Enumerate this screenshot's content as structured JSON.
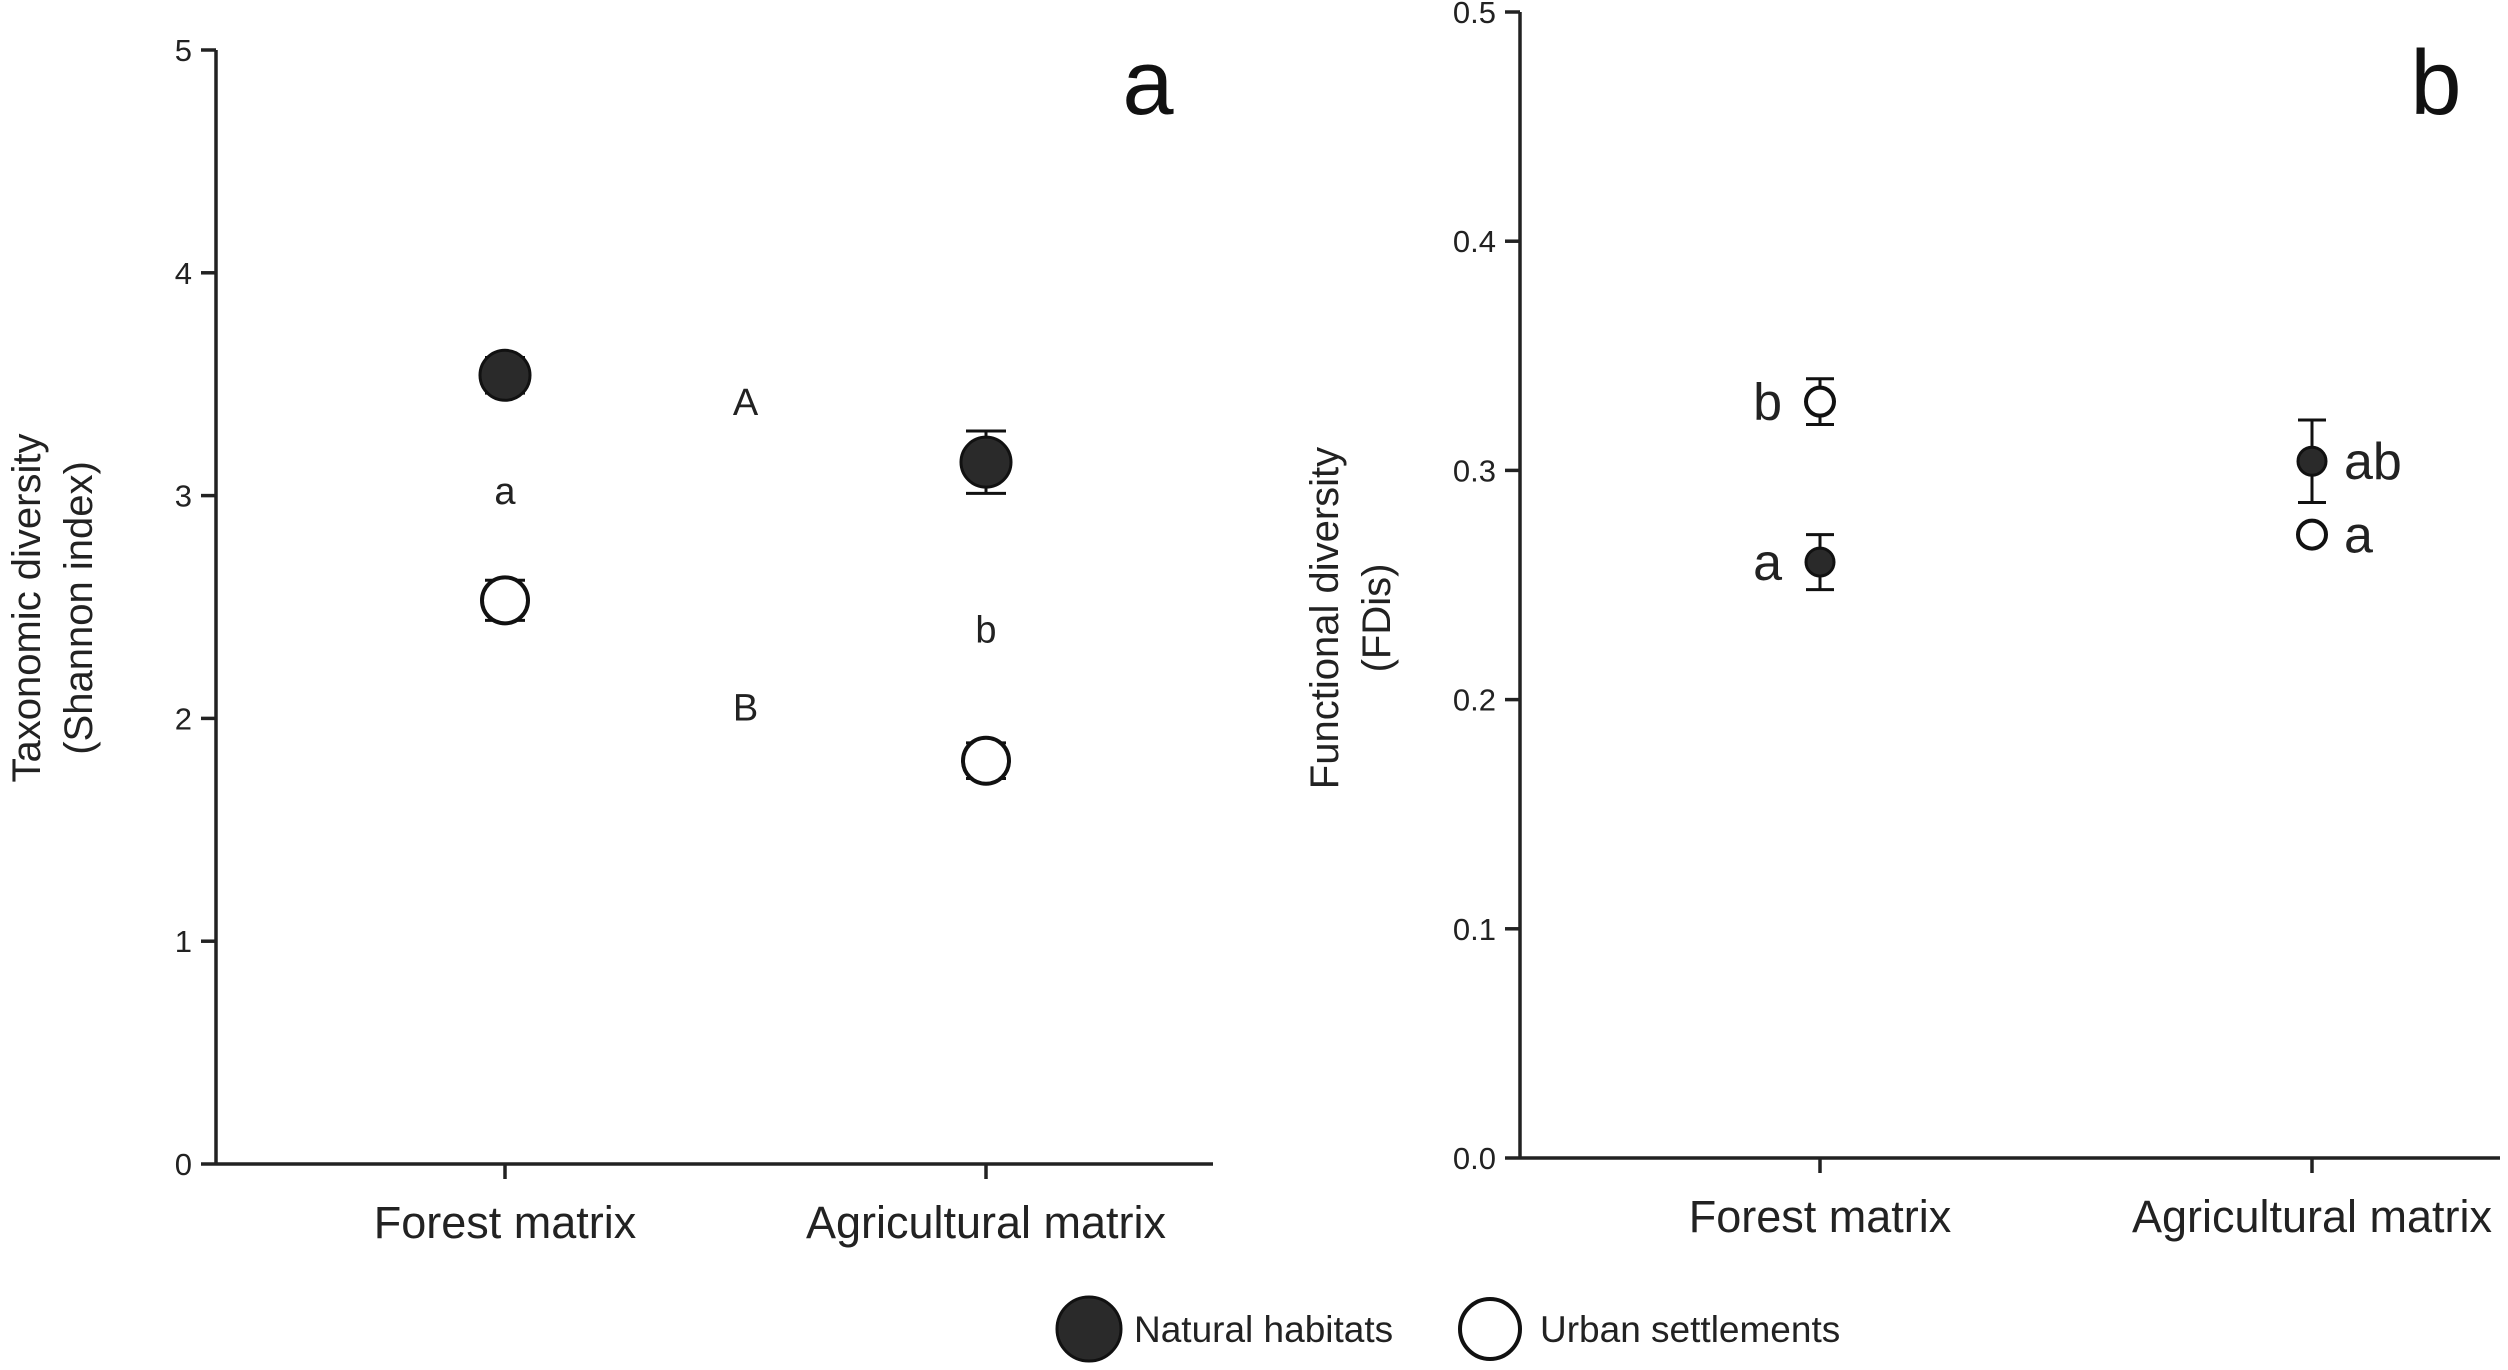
{
  "legend": {
    "natural_label": "Natural habitats",
    "urban_label": "Urban settlements",
    "natural_color": "#2a2a2a",
    "urban_color": "#ffffff"
  },
  "chart_data": [
    {
      "panel": "a",
      "type": "scatter",
      "ylabel_line1": "Taxonomic diversity",
      "ylabel_line2": "(Shannon index)",
      "ylim": [
        0,
        5
      ],
      "yticks": [
        0,
        1,
        2,
        3,
        4,
        5
      ],
      "ytick_labels": [
        "0",
        "1",
        "2",
        "3",
        "4",
        "5"
      ],
      "categories": [
        "Forest matrix",
        "Agricultural matrix"
      ],
      "series": [
        {
          "name": "Natural habitats",
          "values": [
            3.54,
            3.15
          ],
          "err": [
            0.08,
            0.14
          ]
        },
        {
          "name": "Urban settlements",
          "values": [
            2.53,
            1.81
          ],
          "err": [
            0.09,
            0.08
          ]
        }
      ],
      "annotations": [
        {
          "text": "a",
          "x": "Forest matrix",
          "y": 3.02,
          "size": "small"
        },
        {
          "text": "b",
          "x": "Agricultural matrix",
          "y": 2.4,
          "size": "small"
        },
        {
          "text": "A",
          "x": 1.5,
          "y": 3.42,
          "size": "small"
        },
        {
          "text": "B",
          "x": 1.5,
          "y": 2.05,
          "size": "small"
        }
      ]
    },
    {
      "panel": "b",
      "type": "scatter",
      "ylabel_line1": "Functional diversity",
      "ylabel_line2": "(FDis)",
      "ylim": [
        0,
        0.5
      ],
      "yticks": [
        0,
        0.1,
        0.2,
        0.3,
        0.4,
        0.5
      ],
      "ytick_labels": [
        "0.0",
        "0.1",
        "0.2",
        "0.3",
        "0.4",
        "0.5"
      ],
      "categories": [
        "Forest matrix",
        "Agricultural matrix"
      ],
      "series": [
        {
          "name": "Natural habitats",
          "values": [
            0.26,
            0.304
          ],
          "err": [
            0.012,
            0.018
          ]
        },
        {
          "name": "Urban settlements",
          "values": [
            0.33,
            0.272
          ],
          "err": [
            0.01,
            0.0
          ]
        }
      ],
      "annotations": [
        {
          "text": "b",
          "series": 1,
          "x": "Forest matrix",
          "side": "left"
        },
        {
          "text": "a",
          "series": 0,
          "x": "Forest matrix",
          "side": "left"
        },
        {
          "text": "ab",
          "series": 0,
          "x": "Agricultural matrix",
          "side": "right"
        },
        {
          "text": "a",
          "series": 1,
          "x": "Agricultural matrix",
          "side": "right"
        }
      ]
    }
  ]
}
